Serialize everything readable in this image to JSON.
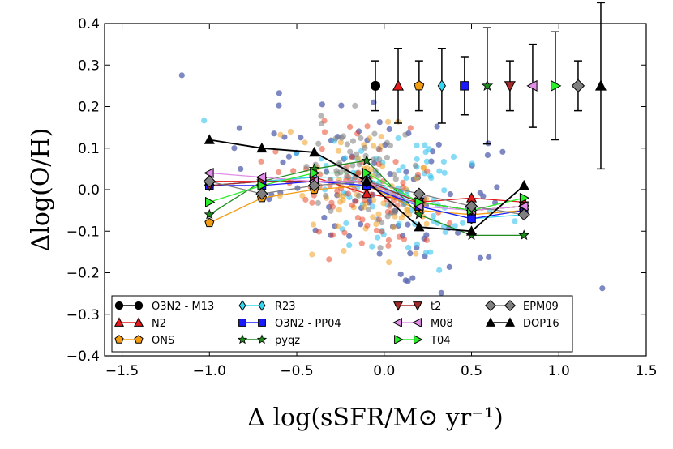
{
  "chart_data": {
    "type": "scatter",
    "xlabel": "Δ log(sSFR/M⊙ yr⁻¹)",
    "ylabel": "Δlog(O/H)",
    "xlim": [
      -1.6,
      1.5
    ],
    "ylim": [
      -0.4,
      0.4
    ],
    "x_ticks": [
      -1.5,
      -1.0,
      -0.5,
      0.0,
      0.5,
      1.0,
      1.5
    ],
    "x_tick_labels": [
      "−1.5",
      "−1.0",
      "−0.5",
      "0.0",
      "0.5",
      "1.0",
      "1.5"
    ],
    "y_ticks": [
      -0.4,
      -0.3,
      -0.2,
      -0.1,
      0.0,
      0.1,
      0.2,
      0.3,
      0.4
    ],
    "y_tick_labels": [
      "−0.4",
      "−0.3",
      "−0.2",
      "−0.1",
      "0.0",
      "0.1",
      "0.2",
      "0.3",
      "0.4"
    ],
    "legend_position": "lower-center",
    "series": [
      {
        "name": "O3N2 - M13",
        "marker": "circle",
        "color": "#000000",
        "x": [
          -1.0,
          -0.7,
          -0.4,
          -0.1,
          0.2,
          0.5,
          0.8
        ],
        "y": [
          0.01,
          0.02,
          0.02,
          0.02,
          -0.03,
          -0.05,
          -0.04
        ],
        "error_point": {
          "x": -0.05,
          "y": 0.25,
          "yerr_low": 0.06,
          "yerr_high": 0.06
        }
      },
      {
        "name": "N2",
        "marker": "triangle-up",
        "color": "#e41a1c",
        "x": [
          -1.0,
          -0.7,
          -0.4,
          -0.1,
          0.2,
          0.5,
          0.8
        ],
        "y": [
          0.02,
          0.02,
          0.03,
          -0.01,
          -0.03,
          -0.02,
          -0.03
        ],
        "error_point": {
          "x": 0.08,
          "y": 0.25,
          "yerr_low": 0.09,
          "yerr_high": 0.09
        }
      },
      {
        "name": "ONS",
        "marker": "pentagon",
        "color": "#f39c12",
        "x": [
          -1.0,
          -0.7,
          -0.4,
          -0.1,
          0.2,
          0.5,
          0.8
        ],
        "y": [
          -0.08,
          -0.02,
          0.0,
          0.01,
          -0.05,
          -0.06,
          -0.05
        ],
        "error_point": {
          "x": 0.2,
          "y": 0.25,
          "yerr_low": 0.06,
          "yerr_high": 0.06
        }
      },
      {
        "name": "R23",
        "marker": "diamond",
        "color": "#33d6f2",
        "x": [
          -1.0,
          -0.7,
          -0.4,
          -0.1,
          0.2,
          0.5,
          0.8
        ],
        "y": [
          0.01,
          0.02,
          0.03,
          0.03,
          -0.04,
          -0.07,
          -0.06
        ],
        "error_point": {
          "x": 0.33,
          "y": 0.25,
          "yerr_low": 0.09,
          "yerr_high": 0.09
        }
      },
      {
        "name": "O3N2 - PP04",
        "marker": "square",
        "color": "#1a1aff",
        "x": [
          -1.0,
          -0.7,
          -0.4,
          -0.1,
          0.2,
          0.5,
          0.8
        ],
        "y": [
          0.01,
          0.01,
          0.02,
          0.01,
          -0.04,
          -0.07,
          -0.05
        ],
        "error_point": {
          "x": 0.46,
          "y": 0.25,
          "yerr_low": 0.07,
          "yerr_high": 0.07
        }
      },
      {
        "name": "pyqz",
        "marker": "star",
        "color": "#1e8b1e",
        "x": [
          -1.0,
          -0.7,
          -0.4,
          -0.1,
          0.2,
          0.5,
          0.8
        ],
        "y": [
          -0.06,
          0.02,
          0.05,
          0.07,
          -0.06,
          -0.11,
          -0.11
        ],
        "error_point": {
          "x": 0.59,
          "y": 0.25,
          "yerr_low": 0.14,
          "yerr_high": 0.14
        }
      },
      {
        "name": "t2",
        "marker": "triangle-down",
        "color": "#a52a2a",
        "x": [
          -1.0,
          -0.7,
          -0.4,
          -0.1,
          0.2,
          0.5,
          0.8
        ],
        "y": [
          0.01,
          0.02,
          0.02,
          0.02,
          -0.03,
          -0.05,
          -0.04
        ],
        "error_point": {
          "x": 0.72,
          "y": 0.25,
          "yerr_low": 0.06,
          "yerr_high": 0.06
        }
      },
      {
        "name": "M08",
        "marker": "triangle-left",
        "color": "#e08ee6",
        "x": [
          -1.0,
          -0.7,
          -0.4,
          -0.1,
          0.2,
          0.5,
          0.8
        ],
        "y": [
          0.04,
          0.03,
          0.02,
          0.02,
          -0.04,
          -0.05,
          -0.04
        ],
        "error_point": {
          "x": 0.85,
          "y": 0.25,
          "yerr_low": 0.1,
          "yerr_high": 0.1
        }
      },
      {
        "name": "T04",
        "marker": "triangle-right",
        "color": "#2aef2a",
        "x": [
          -1.0,
          -0.7,
          -0.4,
          -0.1,
          0.2,
          0.5,
          0.8
        ],
        "y": [
          -0.03,
          0.01,
          0.04,
          0.04,
          -0.03,
          -0.05,
          -0.02
        ],
        "error_point": {
          "x": 0.98,
          "y": 0.25,
          "yerr_low": 0.13,
          "yerr_high": 0.13
        }
      },
      {
        "name": "EPM09",
        "marker": "diamond-big",
        "color": "#808080",
        "x": [
          -1.0,
          -0.7,
          -0.4,
          -0.1,
          0.2,
          0.5,
          0.8
        ],
        "y": [
          0.02,
          -0.01,
          0.01,
          0.02,
          -0.01,
          -0.04,
          -0.06
        ],
        "error_point": {
          "x": 1.11,
          "y": 0.25,
          "yerr_low": 0.06,
          "yerr_high": 0.06
        }
      },
      {
        "name": "DOP16",
        "marker": "triangle-up",
        "color": "#000000",
        "x": [
          -1.0,
          -0.7,
          -0.4,
          -0.1,
          0.2,
          0.5,
          0.8
        ],
        "y": [
          0.12,
          0.1,
          0.09,
          0.02,
          -0.09,
          -0.1,
          0.01
        ],
        "error_point": {
          "x": 1.24,
          "y": 0.25,
          "yerr_low": 0.2,
          "yerr_high": 0.2
        }
      }
    ]
  }
}
